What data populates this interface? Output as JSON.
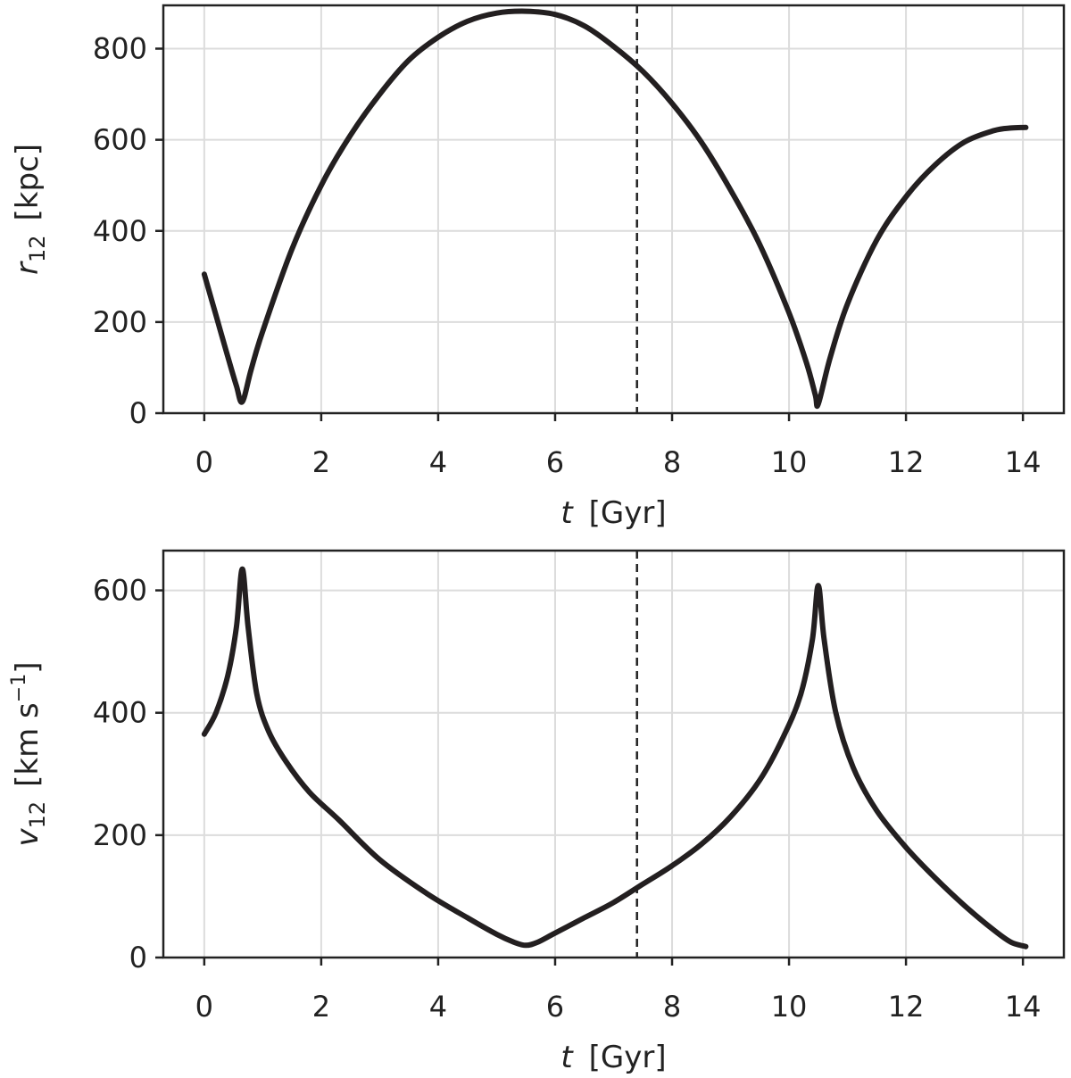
{
  "chart_data": [
    {
      "type": "line",
      "xlabel": {
        "var": "t",
        "unit": "[Gyr]"
      },
      "ylabel": {
        "var": "r",
        "sub": "12",
        "unit": "[kpc]"
      },
      "xlim": [
        -0.7,
        14.7
      ],
      "ylim": [
        0,
        895
      ],
      "xticks": [
        0,
        2,
        4,
        6,
        8,
        10,
        12,
        14
      ],
      "yticks": [
        0,
        200,
        400,
        600,
        800
      ],
      "grid": true,
      "vline_x": 7.4,
      "series": [
        {
          "x": [
            0,
            0.2,
            0.4,
            0.55,
            0.65,
            0.8,
            1.0,
            1.5,
            2.0,
            2.5,
            3.0,
            3.5,
            4.0,
            4.5,
            5.0,
            5.5,
            6.0,
            6.5,
            7.0,
            7.5,
            8.0,
            8.5,
            9.0,
            9.5,
            10.0,
            10.3,
            10.45,
            10.5,
            10.7,
            11.0,
            11.5,
            12.0,
            12.5,
            13.0,
            13.5,
            13.8,
            14.05
          ],
          "y": [
            305,
            215,
            125,
            60,
            25,
            95,
            180,
            360,
            500,
            610,
            700,
            775,
            825,
            860,
            878,
            882,
            875,
            850,
            805,
            750,
            680,
            595,
            490,
            370,
            220,
            110,
            40,
            20,
            120,
            240,
            380,
            475,
            545,
            595,
            620,
            626,
            627
          ]
        }
      ]
    },
    {
      "type": "line",
      "xlabel": {
        "var": "t",
        "unit": "[Gyr]"
      },
      "ylabel": {
        "var": "v",
        "sub": "12",
        "unit": "[km s",
        "unit_sup": "−1",
        "unit_end": "]"
      },
      "xlim": [
        -0.7,
        14.7
      ],
      "ylim": [
        0,
        665
      ],
      "xticks": [
        0,
        2,
        4,
        6,
        8,
        10,
        12,
        14
      ],
      "yticks": [
        0,
        200,
        400,
        600
      ],
      "grid": true,
      "vline_x": 7.4,
      "series": [
        {
          "x": [
            0,
            0.2,
            0.4,
            0.55,
            0.65,
            0.75,
            0.9,
            1.1,
            1.4,
            1.8,
            2.3,
            3.0,
            3.8,
            4.5,
            5.0,
            5.3,
            5.5,
            5.7,
            6.0,
            6.5,
            7.0,
            7.5,
            8.0,
            8.5,
            9.0,
            9.5,
            9.9,
            10.2,
            10.4,
            10.5,
            10.6,
            10.8,
            11.1,
            11.5,
            12.0,
            12.5,
            13.0,
            13.5,
            13.8,
            14.05
          ],
          "y": [
            365,
            400,
            460,
            540,
            635,
            540,
            430,
            370,
            320,
            270,
            225,
            160,
            105,
            65,
            38,
            25,
            20,
            25,
            40,
            65,
            90,
            120,
            150,
            185,
            230,
            290,
            360,
            430,
            520,
            608,
            520,
            400,
            310,
            240,
            180,
            130,
            85,
            45,
            25,
            18
          ]
        }
      ]
    }
  ]
}
